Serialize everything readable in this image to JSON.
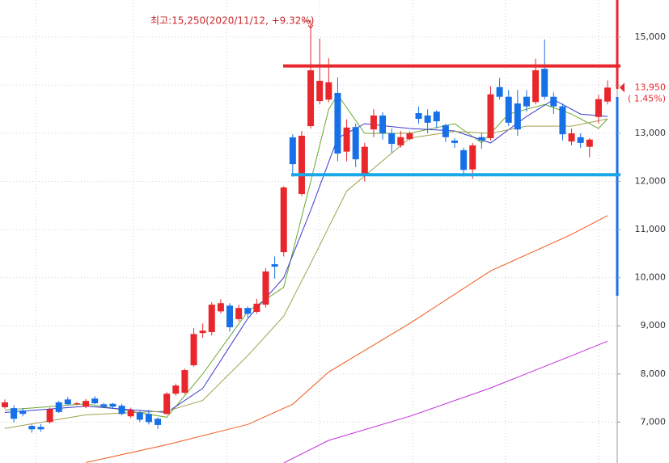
{
  "chart_data": {
    "type": "candlestick",
    "annotation": "최고:15,250(2020/11/12, +9.32%)",
    "last_price_label": "13,950",
    "change_label": "( 1.45%)",
    "up_color": "#e8262c",
    "down_color": "#1670e8",
    "ylim": [
      6150,
      15770
    ],
    "yticks": [
      {
        "value": 7000,
        "label": "7,000"
      },
      {
        "value": 8000,
        "label": "8,000"
      },
      {
        "value": 9000,
        "label": "9,000"
      },
      {
        "value": 10000,
        "label": "10,000"
      },
      {
        "value": 11000,
        "label": "11,000"
      },
      {
        "value": 12000,
        "label": "12,000"
      },
      {
        "value": 13000,
        "label": "13,000"
      },
      {
        "value": 14000,
        "label": "14,000"
      },
      {
        "value": 15000,
        "label": "15,000"
      }
    ],
    "grid": true,
    "open": [
      7310,
      7290,
      7240,
      6920,
      6900,
      7000,
      7410,
      7470,
      7380,
      7320,
      7490,
      7370,
      7380,
      7340,
      7120,
      7200,
      7170,
      7070,
      7170,
      7590,
      7610,
      8180,
      8850,
      8870,
      9300,
      9420,
      9140,
      9370,
      9290,
      9440,
      10280,
      10530,
      12917,
      11740,
      13150,
      13670,
      13700,
      13840,
      12620,
      13130,
      12160,
      13080,
      13370,
      13000,
      12750,
      12880,
      13420,
      13370,
      13450,
      13170,
      12850,
      12650,
      12250,
      12920,
      12900,
      13960,
      13760,
      13620,
      13760,
      13650,
      14340,
      13760,
      13560,
      12830,
      12920,
      12720,
      13340,
      13660
    ],
    "high": [
      7470,
      7350,
      7290,
      6950,
      6960,
      7300,
      7440,
      7520,
      7420,
      7480,
      7540,
      7400,
      7400,
      7380,
      7300,
      7230,
      7250,
      7100,
      7620,
      7800,
      8110,
      8950,
      9050,
      9490,
      9550,
      9470,
      9440,
      9400,
      9560,
      10200,
      10440,
      11900,
      12980,
      13050,
      15250,
      14970,
      14560,
      14160,
      13290,
      13200,
      12800,
      13500,
      13440,
      13100,
      13050,
      13040,
      13560,
      13500,
      13480,
      13200,
      12900,
      12700,
      12800,
      13000,
      13980,
      14150,
      13900,
      13900,
      13900,
      14550,
      14950,
      13850,
      13620,
      13100,
      13000,
      12900,
      13800,
      14100
    ],
    "low": [
      7280,
      6990,
      7120,
      6780,
      6800,
      6970,
      7190,
      7350,
      7350,
      7290,
      7370,
      7290,
      7290,
      7140,
      7080,
      7000,
      6950,
      6860,
      7150,
      7550,
      7580,
      8150,
      8750,
      8800,
      9260,
      8880,
      9090,
      9180,
      9250,
      9380,
      9980,
      10440,
      12100,
      11700,
      13100,
      13600,
      13650,
      12420,
      12420,
      12300,
      12000,
      12920,
      12870,
      12600,
      12700,
      12850,
      13200,
      13000,
      13100,
      12820,
      12700,
      12100,
      12050,
      12680,
      12850,
      13700,
      13150,
      12950,
      13450,
      13600,
      13700,
      13400,
      12850,
      12750,
      12700,
      12500,
      13200,
      13600
    ],
    "close": [
      7410,
      7070,
      7170,
      6850,
      6850,
      7270,
      7210,
      7370,
      7390,
      7440,
      7390,
      7320,
      7320,
      7170,
      7250,
      7050,
      7000,
      6940,
      7590,
      7760,
      8080,
      8830,
      8900,
      9440,
      9470,
      8970,
      9370,
      9250,
      9460,
      10130,
      10230,
      11875,
      12360,
      12950,
      14310,
      14090,
      14060,
      12580,
      13120,
      12460,
      12720,
      13370,
      13000,
      12780,
      12920,
      13000,
      13300,
      13220,
      13250,
      12920,
      12800,
      12240,
      12750,
      12850,
      13810,
      13760,
      13220,
      13080,
      13560,
      14310,
      13760,
      13560,
      12980,
      13000,
      12800,
      12870,
      13710,
      13950
    ],
    "series": [
      {
        "color": "#6aa830",
        "x": [
          0,
          9,
          18,
          22,
          27,
          31,
          34,
          36,
          37,
          40,
          45,
          50,
          53,
          56,
          60,
          63,
          66,
          67
        ],
        "values": [
          7250,
          7380,
          7100,
          8000,
          9300,
          9800,
          12000,
          13500,
          13800,
          13000,
          13000,
          13200,
          12800,
          13400,
          13600,
          13400,
          13100,
          13300
        ]
      },
      {
        "color": "#3a3ad0",
        "x": [
          0,
          9,
          18,
          22,
          27,
          31,
          34,
          37,
          40,
          45,
          50,
          54,
          58,
          61,
          64,
          67
        ],
        "values": [
          7200,
          7330,
          7200,
          7700,
          9150,
          10000,
          11400,
          12900,
          13200,
          13100,
          13050,
          12800,
          13350,
          13700,
          13400,
          13350
        ]
      },
      {
        "color": "#a0a050",
        "x": [
          0,
          9,
          18,
          22,
          27,
          31,
          34,
          38,
          45,
          50,
          54,
          58,
          63,
          67
        ],
        "values": [
          6870,
          7150,
          7230,
          7450,
          8380,
          9200,
          10300,
          11800,
          12900,
          13040,
          13000,
          13150,
          13150,
          13300
        ]
      },
      {
        "color": "#f05a1e",
        "x": [
          9,
          18,
          27,
          32,
          36,
          45,
          54,
          63,
          67
        ],
        "values": [
          6160,
          6530,
          6950,
          7370,
          8040,
          9050,
          10140,
          10900,
          11290
        ]
      },
      {
        "color": "#c030d8",
        "x": [
          31,
          36,
          45,
          54,
          63,
          67
        ],
        "values": [
          6150,
          6620,
          7120,
          7710,
          8380,
          8680
        ]
      }
    ],
    "hlines": [
      {
        "value": 14400,
        "color": "#e8262c"
      },
      {
        "value": 12140,
        "color": "#18a8e8"
      }
    ]
  }
}
